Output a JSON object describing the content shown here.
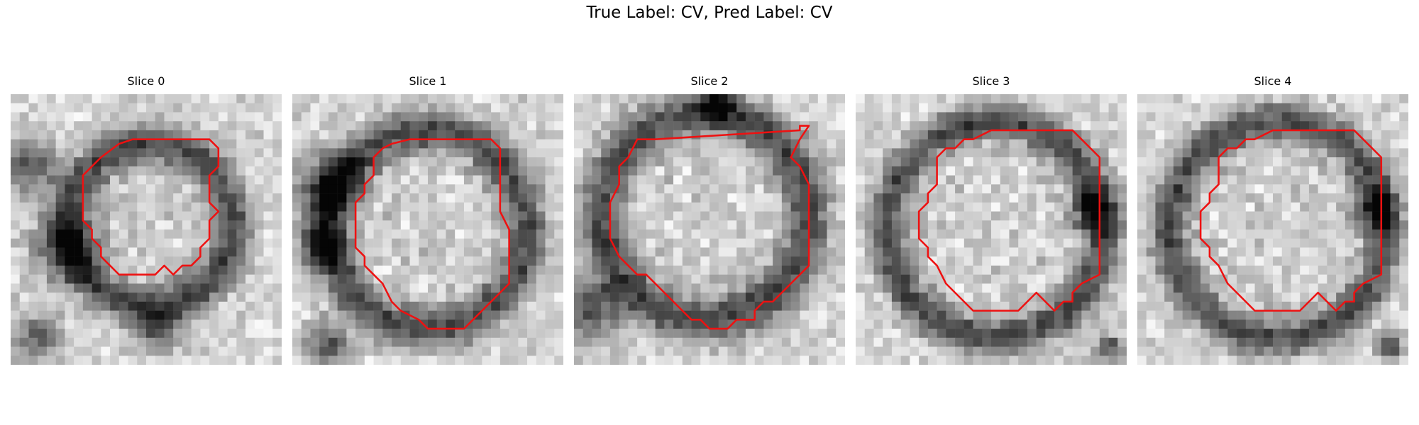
{
  "figure": {
    "title": "True Label: CV, Pred Label: CV"
  },
  "colors": {
    "contour": "#ee1111",
    "background": "#ffffff"
  },
  "slices": [
    {
      "title": "Slice 0"
    },
    {
      "title": "Slice 1"
    },
    {
      "title": "Slice 2"
    },
    {
      "title": "Slice 3"
    },
    {
      "title": "Slice 4"
    }
  ]
}
